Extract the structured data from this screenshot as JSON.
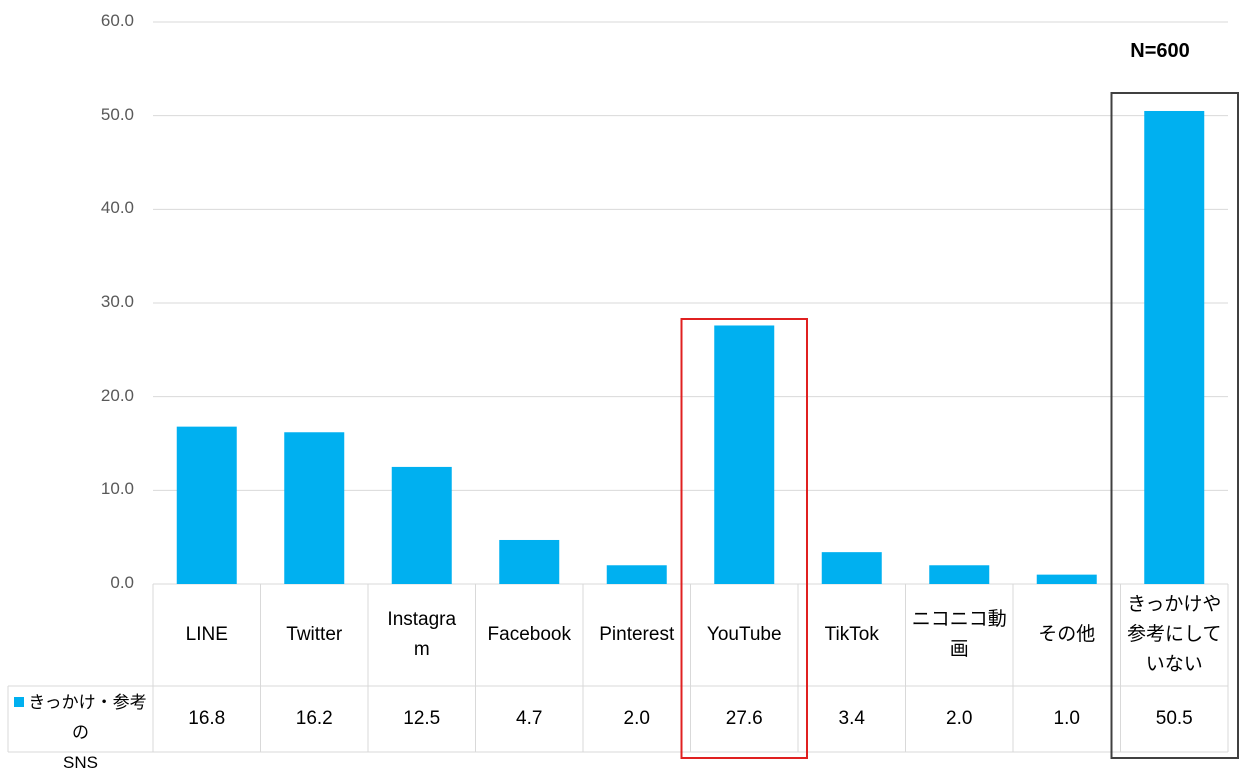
{
  "chart_data": {
    "type": "bar",
    "categories": [
      "LINE",
      "Twitter",
      "Instagram",
      "Facebook",
      "Pinterest",
      "YouTube",
      "TikTok",
      "ニコニコ動画",
      "その他",
      "きっかけや参考にしていない"
    ],
    "category_display": [
      "LINE",
      "Twitter",
      "Instagra\nm",
      "Facebook",
      "Pinterest",
      "YouTube",
      "TikTok",
      "ニコニコ動\n画",
      "その他",
      "きっかけや\n参考にして\nいない"
    ],
    "series": [
      {
        "name": "きっかけ・参考のSNS",
        "values": [
          16.8,
          16.2,
          12.5,
          4.7,
          2.0,
          27.6,
          3.4,
          2.0,
          1.0,
          50.5
        ]
      }
    ],
    "value_labels": [
      "16.8",
      "16.2",
      "12.5",
      "4.7",
      "2.0",
      "27.6",
      "3.4",
      "2.0",
      "1.0",
      "50.5"
    ],
    "legend_label": "きっかけ・参考の\nSNS",
    "ylim": [
      0,
      60
    ],
    "yticks": [
      "0.0",
      "10.0",
      "20.0",
      "30.0",
      "40.0",
      "50.0",
      "60.0"
    ],
    "annotation": "N=600",
    "highlights": [
      {
        "category": "YouTube",
        "color": "#e02020"
      },
      {
        "category": "きっかけや参考にしていない",
        "color": "#404040"
      }
    ],
    "bar_color": "#00b0f0",
    "grid": true,
    "legend_position": "bottom-left data table"
  }
}
